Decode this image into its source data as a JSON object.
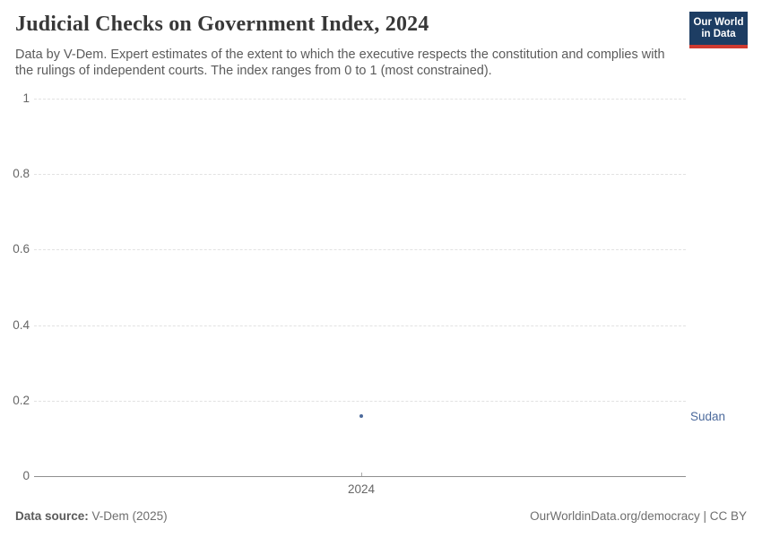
{
  "header": {
    "title": "Judicial Checks on Government Index, 2024",
    "subtitle": "Data by V-Dem. Expert estimates of the extent to which the executive respects the constitution and complies with the rulings of independent courts. The index ranges from 0 to 1 (most constrained).",
    "logo": {
      "line1": "Our World",
      "line2": "in Data"
    }
  },
  "colors": {
    "logo_bg": "#1d3d63",
    "logo_accent": "#cf3a30",
    "entity": "#4c6a9c",
    "grid": "#e2e2e2",
    "axis": "#8f8f8f",
    "tick_text": "#666666",
    "title_text": "#383838",
    "subtitle_text": "#5b5b5b",
    "footer_text": "#6e6e6e"
  },
  "chart_data": {
    "type": "scatter",
    "title": "Judicial Checks on Government Index, 2024",
    "x": [
      2024
    ],
    "series": [
      {
        "name": "Sudan",
        "values": [
          0.16
        ]
      }
    ],
    "xlabel": "",
    "ylabel": "",
    "ylim": [
      0,
      1
    ],
    "xticks": [
      {
        "value": 2024,
        "label": "2024"
      }
    ],
    "yticks": [
      {
        "value": 0,
        "label": "0"
      },
      {
        "value": 0.2,
        "label": "0.2"
      },
      {
        "value": 0.4,
        "label": "0.4"
      },
      {
        "value": 0.6,
        "label": "0.6"
      },
      {
        "value": 0.8,
        "label": "0.8"
      },
      {
        "value": 1,
        "label": "1"
      }
    ],
    "grid": "horizontal-dashed",
    "legend_position": "entity label right of plot"
  },
  "footer": {
    "source_label": "Data source:",
    "source_value": "V-Dem (2025)",
    "right_text": "OurWorldinData.org/democracy | CC BY"
  }
}
